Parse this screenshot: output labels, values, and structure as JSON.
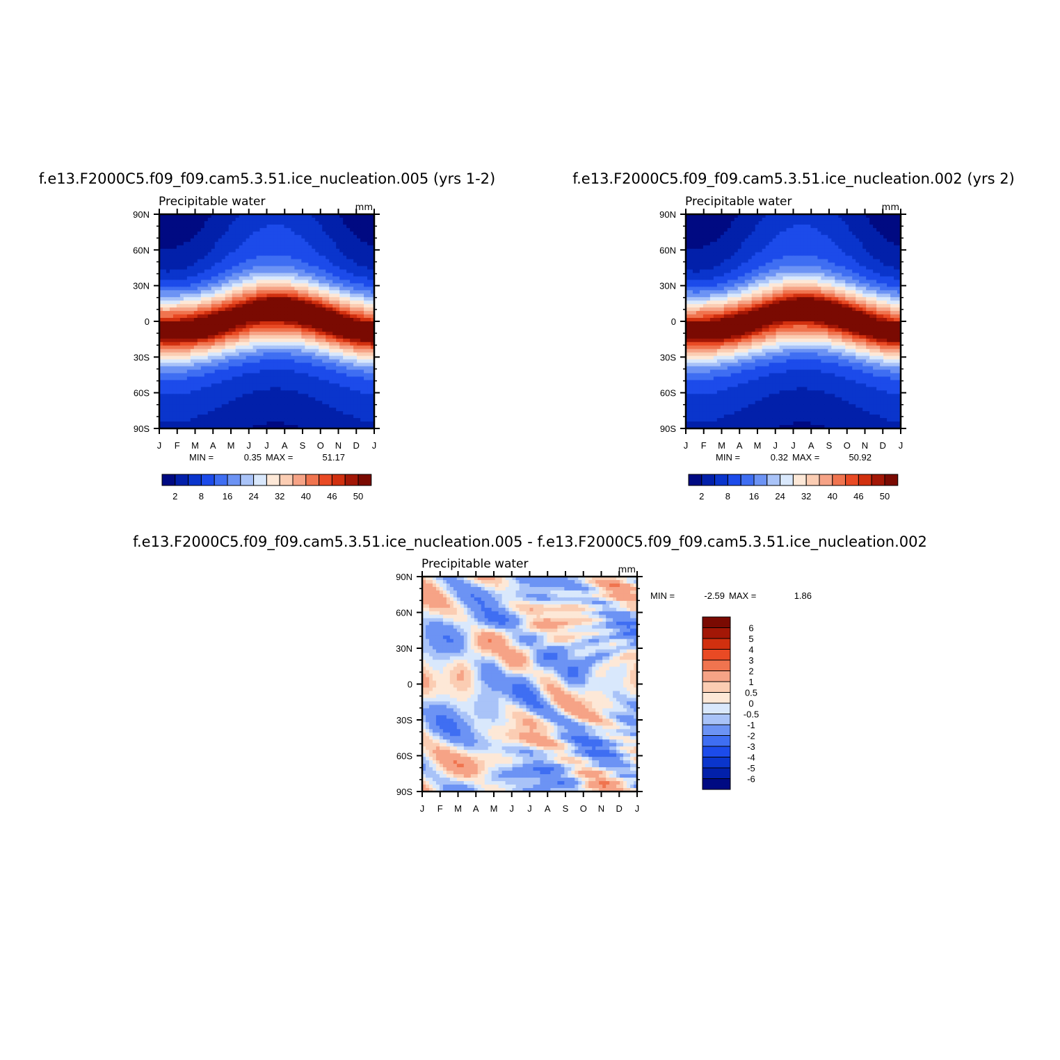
{
  "chart_data": [
    {
      "type": "heatmap",
      "panel": "top-left",
      "title": "f.e13.F2000C5.f09_f09.cam5.3.51.ice_nucleation.005 (yrs 1-2)",
      "subtitle": "Precipitable water",
      "units": "mm",
      "x_ticks": [
        "J",
        "F",
        "M",
        "A",
        "M",
        "J",
        "J",
        "A",
        "S",
        "O",
        "N",
        "D",
        "J"
      ],
      "y_ticks": [
        "90N",
        "60N",
        "30N",
        "0",
        "30S",
        "60S",
        "90S"
      ],
      "min_label": "MIN =",
      "min": "0.35",
      "max_label": "MAX =",
      "max": "51.17",
      "colorbar_labels": [
        "2",
        "8",
        "16",
        "24",
        "32",
        "40",
        "46",
        "50"
      ],
      "colorbar_orientation": "horizontal",
      "field_peak": 51.17,
      "field_floor": 0.35
    },
    {
      "type": "heatmap",
      "panel": "top-right",
      "title": "f.e13.F2000C5.f09_f09.cam5.3.51.ice_nucleation.002 (yrs 2)",
      "subtitle": "Precipitable water",
      "units": "mm",
      "x_ticks": [
        "J",
        "F",
        "M",
        "A",
        "M",
        "J",
        "J",
        "A",
        "S",
        "O",
        "N",
        "D",
        "J"
      ],
      "y_ticks": [
        "90N",
        "60N",
        "30N",
        "0",
        "30S",
        "60S",
        "90S"
      ],
      "min_label": "MIN =",
      "min": "0.32",
      "max_label": "MAX =",
      "max": "50.92",
      "colorbar_labels": [
        "2",
        "8",
        "16",
        "24",
        "32",
        "40",
        "46",
        "50"
      ],
      "colorbar_orientation": "horizontal",
      "field_peak": 50.92,
      "field_floor": 0.32
    },
    {
      "type": "heatmap",
      "panel": "bottom",
      "title": "f.e13.F2000C5.f09_f09.cam5.3.51.ice_nucleation.005 - f.e13.F2000C5.f09_f09.cam5.3.51.ice_nucleation.002",
      "subtitle": "Precipitable water",
      "units": "mm",
      "x_ticks": [
        "J",
        "F",
        "M",
        "A",
        "M",
        "J",
        "J",
        "A",
        "S",
        "O",
        "N",
        "D",
        "J"
      ],
      "y_ticks": [
        "90N",
        "60N",
        "30N",
        "0",
        "30S",
        "60S",
        "90S"
      ],
      "min_label": "MIN =",
      "min": "-2.59",
      "max_label": "MAX =",
      "max": "1.86",
      "colorbar_labels": [
        "6",
        "5",
        "4",
        "3",
        "2",
        "1",
        "0.5",
        "0",
        "-0.5",
        "-1",
        "-2",
        "-3",
        "-4",
        "-5",
        "-6"
      ],
      "colorbar_orientation": "vertical"
    }
  ],
  "colors": {
    "absolute_scale": [
      "#000a82",
      "#0220aa",
      "#0a35cc",
      "#1c4bea",
      "#3f6ef2",
      "#6c93f4",
      "#a9c3f8",
      "#d9e8fc",
      "#fde8d7",
      "#fbcdb3",
      "#f6a386",
      "#f0744f",
      "#e94a24",
      "#d1300f",
      "#a31706",
      "#7a0a02"
    ],
    "anomaly_scale": [
      "#000a82",
      "#0220aa",
      "#0a35cc",
      "#1c4bea",
      "#3f6ef2",
      "#6c93f4",
      "#a9c3f8",
      "#d9e8fc",
      "#fde8d7",
      "#fbcdb3",
      "#f6a386",
      "#f0744f",
      "#e94a24",
      "#d1300f",
      "#a31706",
      "#7a0a02"
    ]
  }
}
